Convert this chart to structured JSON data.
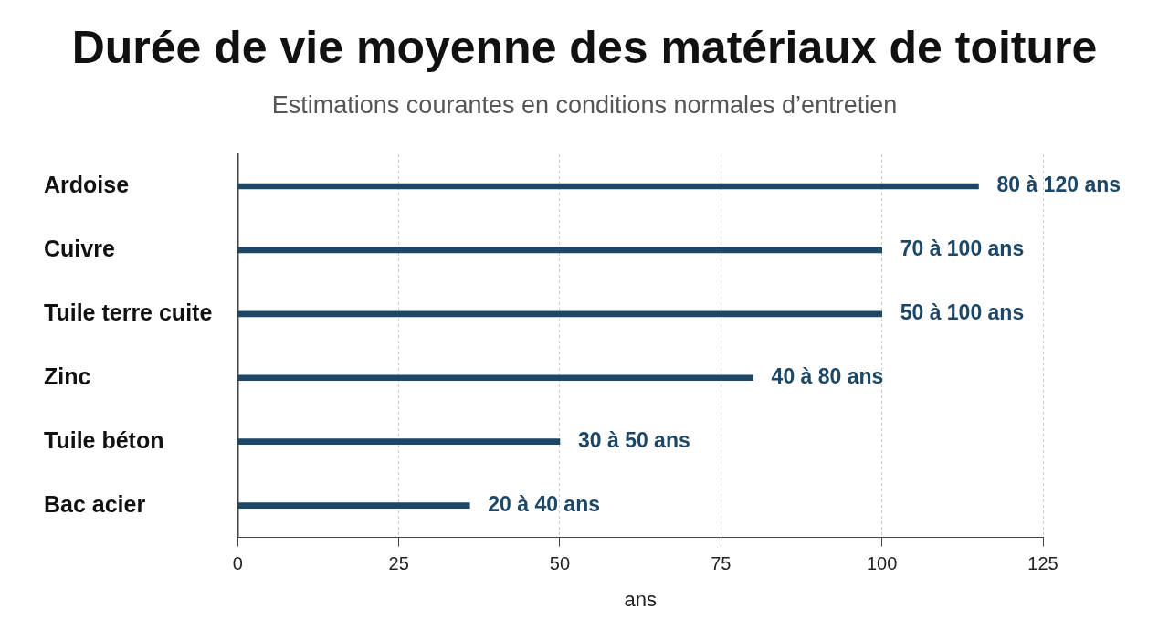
{
  "chart_data": {
    "type": "bar",
    "orientation": "horizontal",
    "title": "Durée de vie moyenne des matériaux de toiture",
    "subtitle": "Estimations courantes en conditions normales d’entretien",
    "xlabel": "ans",
    "categories": [
      "Ardoise",
      "Cuivre",
      "Tuile terre cuite",
      "Zinc",
      "Tuile béton",
      "Bac acier"
    ],
    "values": [
      115,
      100,
      100,
      80,
      50,
      36
    ],
    "annotations": [
      {
        "text": "80 à 120 ans",
        "x": 115,
        "y": "Ardoise"
      },
      {
        "text": "70 à 100 ans",
        "x": 100,
        "y": "Cuivre"
      },
      {
        "text": "50 à 100 ans",
        "x": 100,
        "y": "Tuile terre cuite"
      },
      {
        "text": "40 à 80 ans",
        "x": 80,
        "y": "Zinc"
      },
      {
        "text": "30 à 50 ans",
        "x": 50,
        "y": "Tuile béton"
      },
      {
        "text": "20 à 40 ans",
        "x": 36,
        "y": "Bac acier"
      }
    ],
    "color": "#1c4766",
    "xlim": [
      0,
      125
    ],
    "xticks": [
      0,
      25,
      50,
      75,
      100,
      125
    ],
    "grid": "x"
  }
}
